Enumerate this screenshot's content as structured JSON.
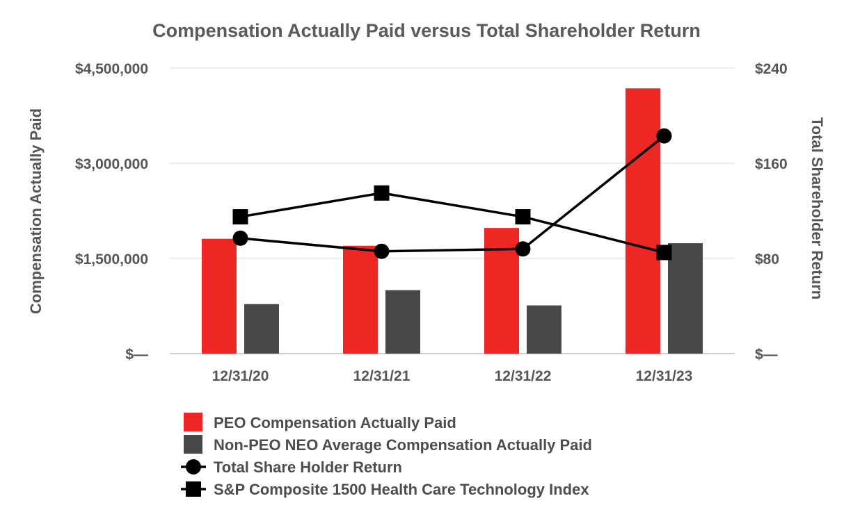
{
  "chart_data": {
    "type": "bar+line",
    "title": "Compensation Actually Paid versus Total Shareholder Return",
    "categories": [
      "12/31/20",
      "12/31/21",
      "12/31/22",
      "12/31/23"
    ],
    "y_left": {
      "label": "Compensation Actually Paid",
      "range": [
        0,
        4500000
      ],
      "ticks": [
        0,
        1500000,
        3000000,
        4500000
      ],
      "tick_labels": [
        "$—",
        "$1,500,000",
        "$3,000,000",
        "$4,500,000"
      ]
    },
    "y_right": {
      "label": "Total Shareholder Return",
      "range": [
        0,
        240
      ],
      "ticks": [
        0,
        80,
        160,
        240
      ],
      "tick_labels": [
        "$—",
        "$80",
        "$160",
        "$240"
      ]
    },
    "grid": true,
    "legend_position": "bottom",
    "series": [
      {
        "name": "PEO Compensation Actually Paid",
        "kind": "bar",
        "axis": "left",
        "color": "#ee2624",
        "values": [
          1810000,
          1700000,
          1980000,
          4180000
        ]
      },
      {
        "name": "Non-PEO NEO Average Compensation Actually Paid",
        "kind": "bar",
        "axis": "left",
        "color": "#484848",
        "values": [
          780000,
          1000000,
          760000,
          1740000
        ]
      },
      {
        "name": "Total Share Holder Return",
        "kind": "line",
        "marker": "circle",
        "axis": "right",
        "color": "#000000",
        "values": [
          97,
          86,
          88,
          183
        ]
      },
      {
        "name": "S&P Composite 1500 Health Care Technology Index",
        "kind": "line",
        "marker": "square",
        "axis": "right",
        "color": "#000000",
        "values": [
          115,
          135,
          115,
          85
        ]
      }
    ]
  }
}
